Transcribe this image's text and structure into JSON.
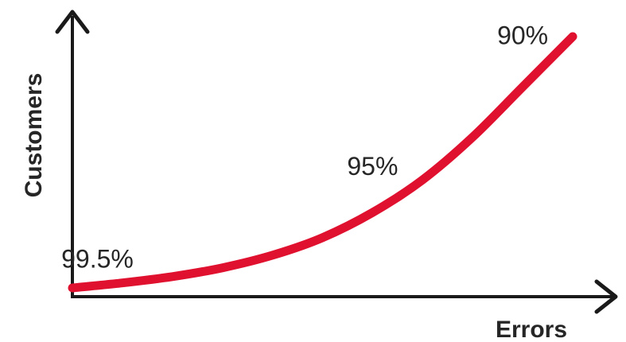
{
  "chart_data": {
    "type": "line",
    "title": "",
    "xlabel": "Errors",
    "ylabel": "Customers",
    "grid": false,
    "legend": "none",
    "series": [
      {
        "color": "#e0102f",
        "x": [
          0,
          0.1,
          0.2,
          0.3,
          0.4,
          0.5,
          0.6,
          0.7,
          0.8,
          0.9,
          1.0
        ],
        "values": [
          0,
          0.02,
          0.045,
          0.08,
          0.13,
          0.2,
          0.3,
          0.43,
          0.6,
          0.8,
          1.0
        ]
      }
    ],
    "annotations": [
      {
        "text": "99.5%",
        "x": 0.05,
        "y": 0.08
      },
      {
        "text": "95%",
        "x": 0.6,
        "y": 0.45
      },
      {
        "text": "90%",
        "x": 0.9,
        "y": 0.97
      }
    ],
    "axis_color": "#1a1a1a"
  }
}
